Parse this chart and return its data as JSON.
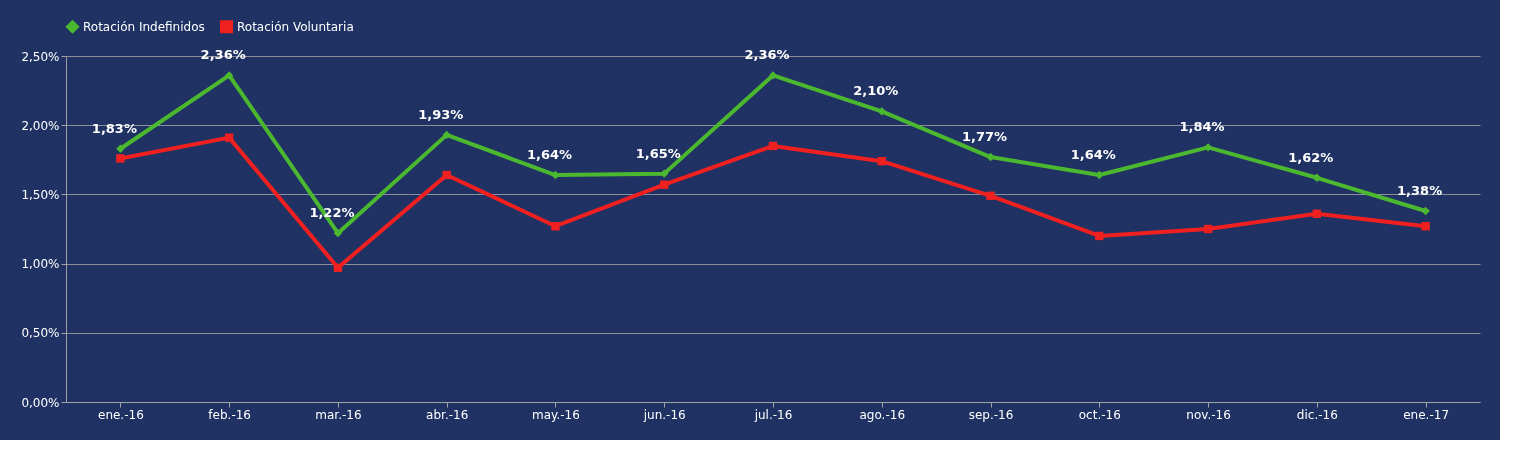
{
  "chart_data": {
    "type": "line",
    "categories": [
      "ene.-16",
      "feb.-16",
      "mar.-16",
      "abr.-16",
      "may.-16",
      "jun.-16",
      "jul.-16",
      "ago.-16",
      "sep.-16",
      "oct.-16",
      "nov.-16",
      "dic.-16",
      "ene.-17"
    ],
    "series": [
      {
        "name": "Rotación Indefinidos",
        "color": "#4cb830",
        "marker": "diamond",
        "values": [
          1.83,
          2.36,
          1.22,
          1.93,
          1.64,
          1.65,
          2.36,
          2.1,
          1.77,
          1.64,
          1.84,
          1.62,
          1.38
        ],
        "value_labels": [
          "1,83%",
          "2,36%",
          "1,22%",
          "1,93%",
          "1,64%",
          "1,65%",
          "2,36%",
          "2,10%",
          "1,77%",
          "1,64%",
          "1,84%",
          "1,62%",
          "1,38%"
        ]
      },
      {
        "name": "Rotación Voluntaria",
        "color": "#f02020",
        "marker": "square",
        "values": [
          1.76,
          1.91,
          0.97,
          1.64,
          1.27,
          1.57,
          1.85,
          1.74,
          1.49,
          1.2,
          1.25,
          1.36,
          1.27
        ]
      }
    ],
    "ylim": [
      0,
      2.5
    ],
    "yticks": [
      {
        "value": 0,
        "label": "0,00%"
      },
      {
        "value": 0.5,
        "label": "0,50%"
      },
      {
        "value": 1,
        "label": "1,00%"
      },
      {
        "value": 1.5,
        "label": "1,50%"
      },
      {
        "value": 2,
        "label": "2,00%"
      },
      {
        "value": 2.5,
        "label": "2,50%"
      }
    ],
    "grid": "y",
    "legend": "top",
    "line_style": "solid"
  }
}
